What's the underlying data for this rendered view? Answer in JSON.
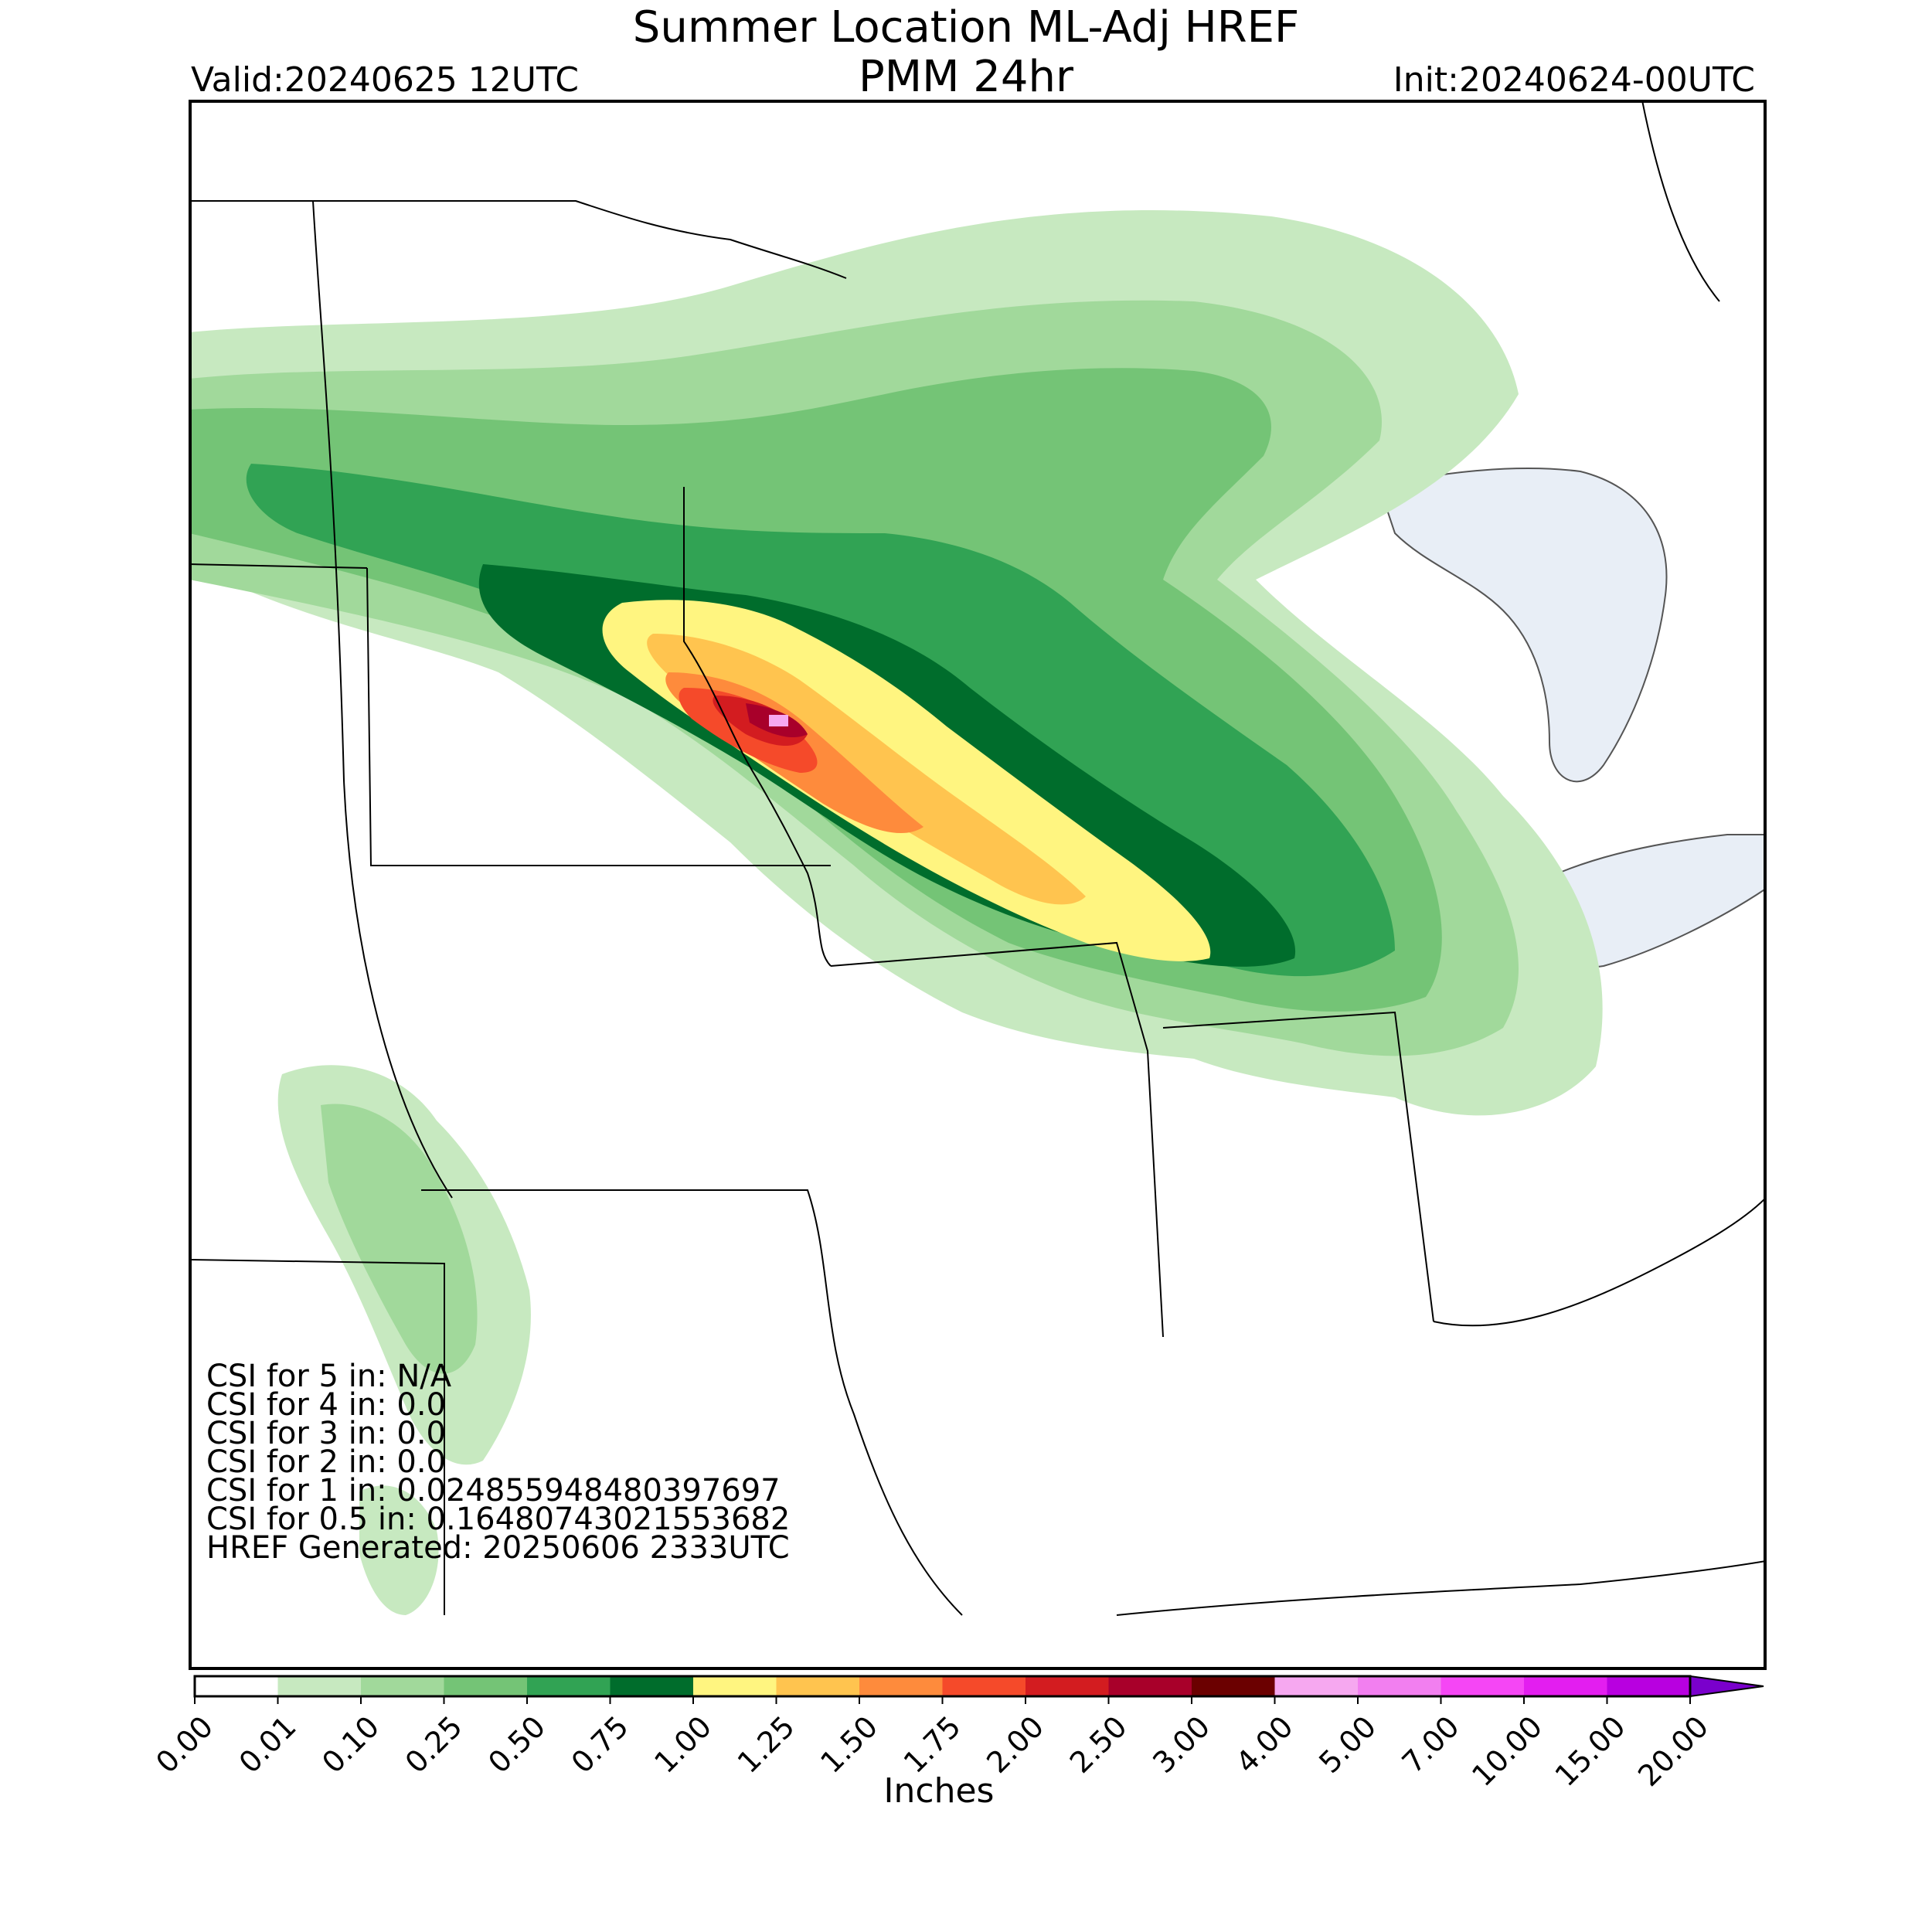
{
  "title": {
    "line1": "Summer Location ML-Adj HREF",
    "line2": "PMM 24hr",
    "valid": "Valid:20240625 12UTC",
    "init": "Init:20240624-00UTC"
  },
  "stats": [
    "CSI for 5 in: N/A",
    "CSI for 4 in: 0.0",
    "CSI for 3 in: 0.0",
    "CSI for 2 in: 0.0",
    "CSI for 1 in: 0.024855948480397697",
    "CSI for 0.5 in: 0.16480743021553682",
    "HREF Generated: 20250606 2333UTC"
  ],
  "colorbar": {
    "label": "Inches",
    "ticks": [
      "0.00",
      "0.01",
      "0.10",
      "0.25",
      "0.50",
      "0.75",
      "1.00",
      "1.25",
      "1.50",
      "1.75",
      "2.00",
      "2.50",
      "3.00",
      "4.00",
      "5.00",
      "7.00",
      "10.00",
      "15.00",
      "20.00"
    ],
    "colors": [
      "#ffffff",
      "#c7e9c0",
      "#a1d99b",
      "#74c476",
      "#31a354",
      "#006d2c",
      "#fff580",
      "#ffc44f",
      "#fe8b3c",
      "#f54a2a",
      "#d31c20",
      "#a8002a",
      "#6b0000",
      "#f6a8f0",
      "#f27ff0",
      "#f546f5",
      "#e31ef0",
      "#b800e0",
      "#7a00cc"
    ]
  },
  "colors": {
    "lake": "#e8eef6",
    "border": "#000000"
  }
}
